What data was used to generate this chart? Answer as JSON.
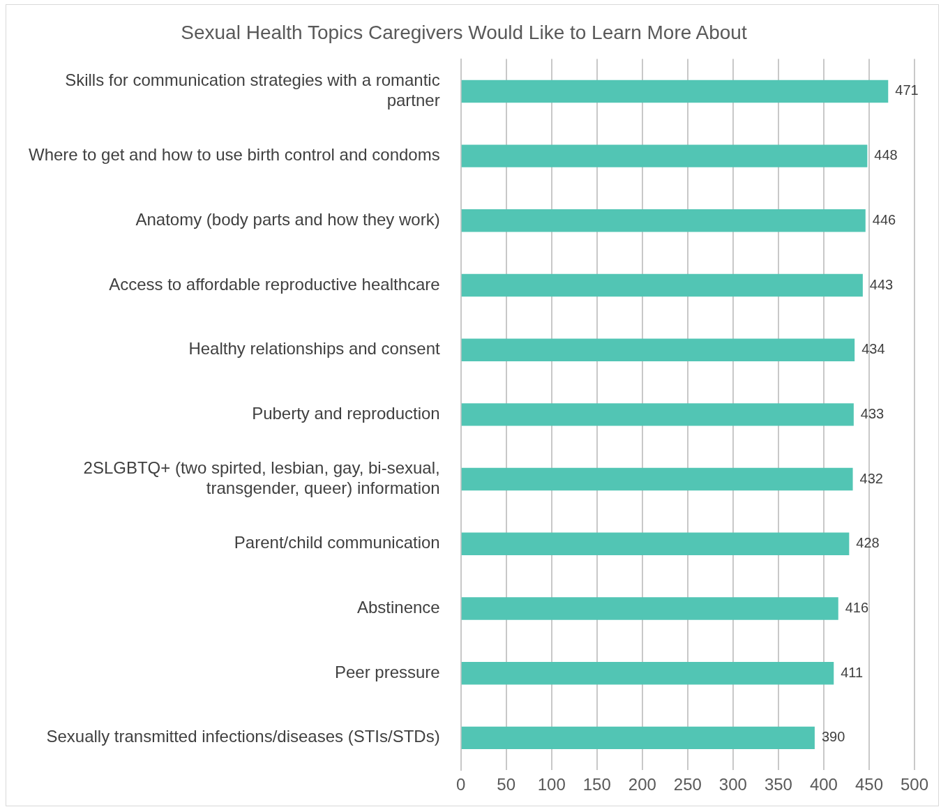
{
  "chart_data": {
    "type": "bar",
    "orientation": "horizontal",
    "title": "Sexual Health Topics Caregivers Would Like to Learn More About",
    "categories": [
      "Skills for communication strategies with a romantic partner",
      "Where to get and how to use birth control and condoms",
      "Anatomy (body parts and how they work)",
      "Access to affordable reproductive healthcare",
      "Healthy relationships and consent",
      "Puberty and reproduction",
      "2SLGBTQ+ (two spirted, lesbian, gay, bi-sexual, transgender, queer) information",
      "Parent/child communication",
      "Abstinence",
      "Peer pressure",
      "Sexually transmitted infections/diseases (STIs/STDs)"
    ],
    "values": [
      471,
      448,
      446,
      443,
      434,
      433,
      432,
      428,
      416,
      411,
      390
    ],
    "color": "#52c5b4",
    "xlim": [
      0,
      500
    ],
    "xticks": [
      0,
      50,
      100,
      150,
      200,
      250,
      300,
      350,
      400,
      450,
      500
    ],
    "grid": "x",
    "data_labels": true,
    "legend": false
  }
}
